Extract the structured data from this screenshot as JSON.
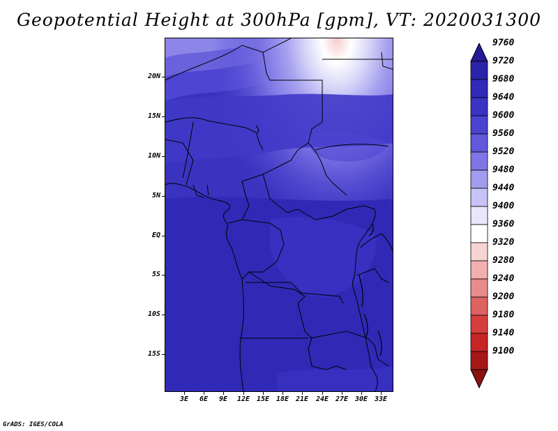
{
  "title": "Geopotential Height at 300hPa [gpm], VT: 2020031300",
  "credit": "GrADS: IGES/COLA",
  "lat_labels": [
    "20N",
    "15N",
    "10N",
    "5N",
    "EQ",
    "5S",
    "10S",
    "15S"
  ],
  "lon_labels": [
    "3E",
    "6E",
    "9E",
    "12E",
    "15E",
    "18E",
    "21E",
    "24E",
    "27E",
    "30E",
    "33E"
  ],
  "colorbar": {
    "labels": [
      "9760",
      "9720",
      "9680",
      "9640",
      "9600",
      "9560",
      "9520",
      "9480",
      "9440",
      "9400",
      "9360",
      "9320",
      "9280",
      "9240",
      "9200",
      "9180",
      "9140",
      "9100"
    ],
    "colors": [
      "#231a96",
      "#2a22a8",
      "#3229b8",
      "#3b33c4",
      "#4b43d0",
      "#6258dc",
      "#7e76e6",
      "#a29cef",
      "#c7c3f6",
      "#e7e6fb",
      "#ffffff",
      "#f7d4d4",
      "#f1afaf",
      "#e98b8b",
      "#df6262",
      "#d63e3e",
      "#c72525",
      "#a61818",
      "#8c1212"
    ]
  }
}
